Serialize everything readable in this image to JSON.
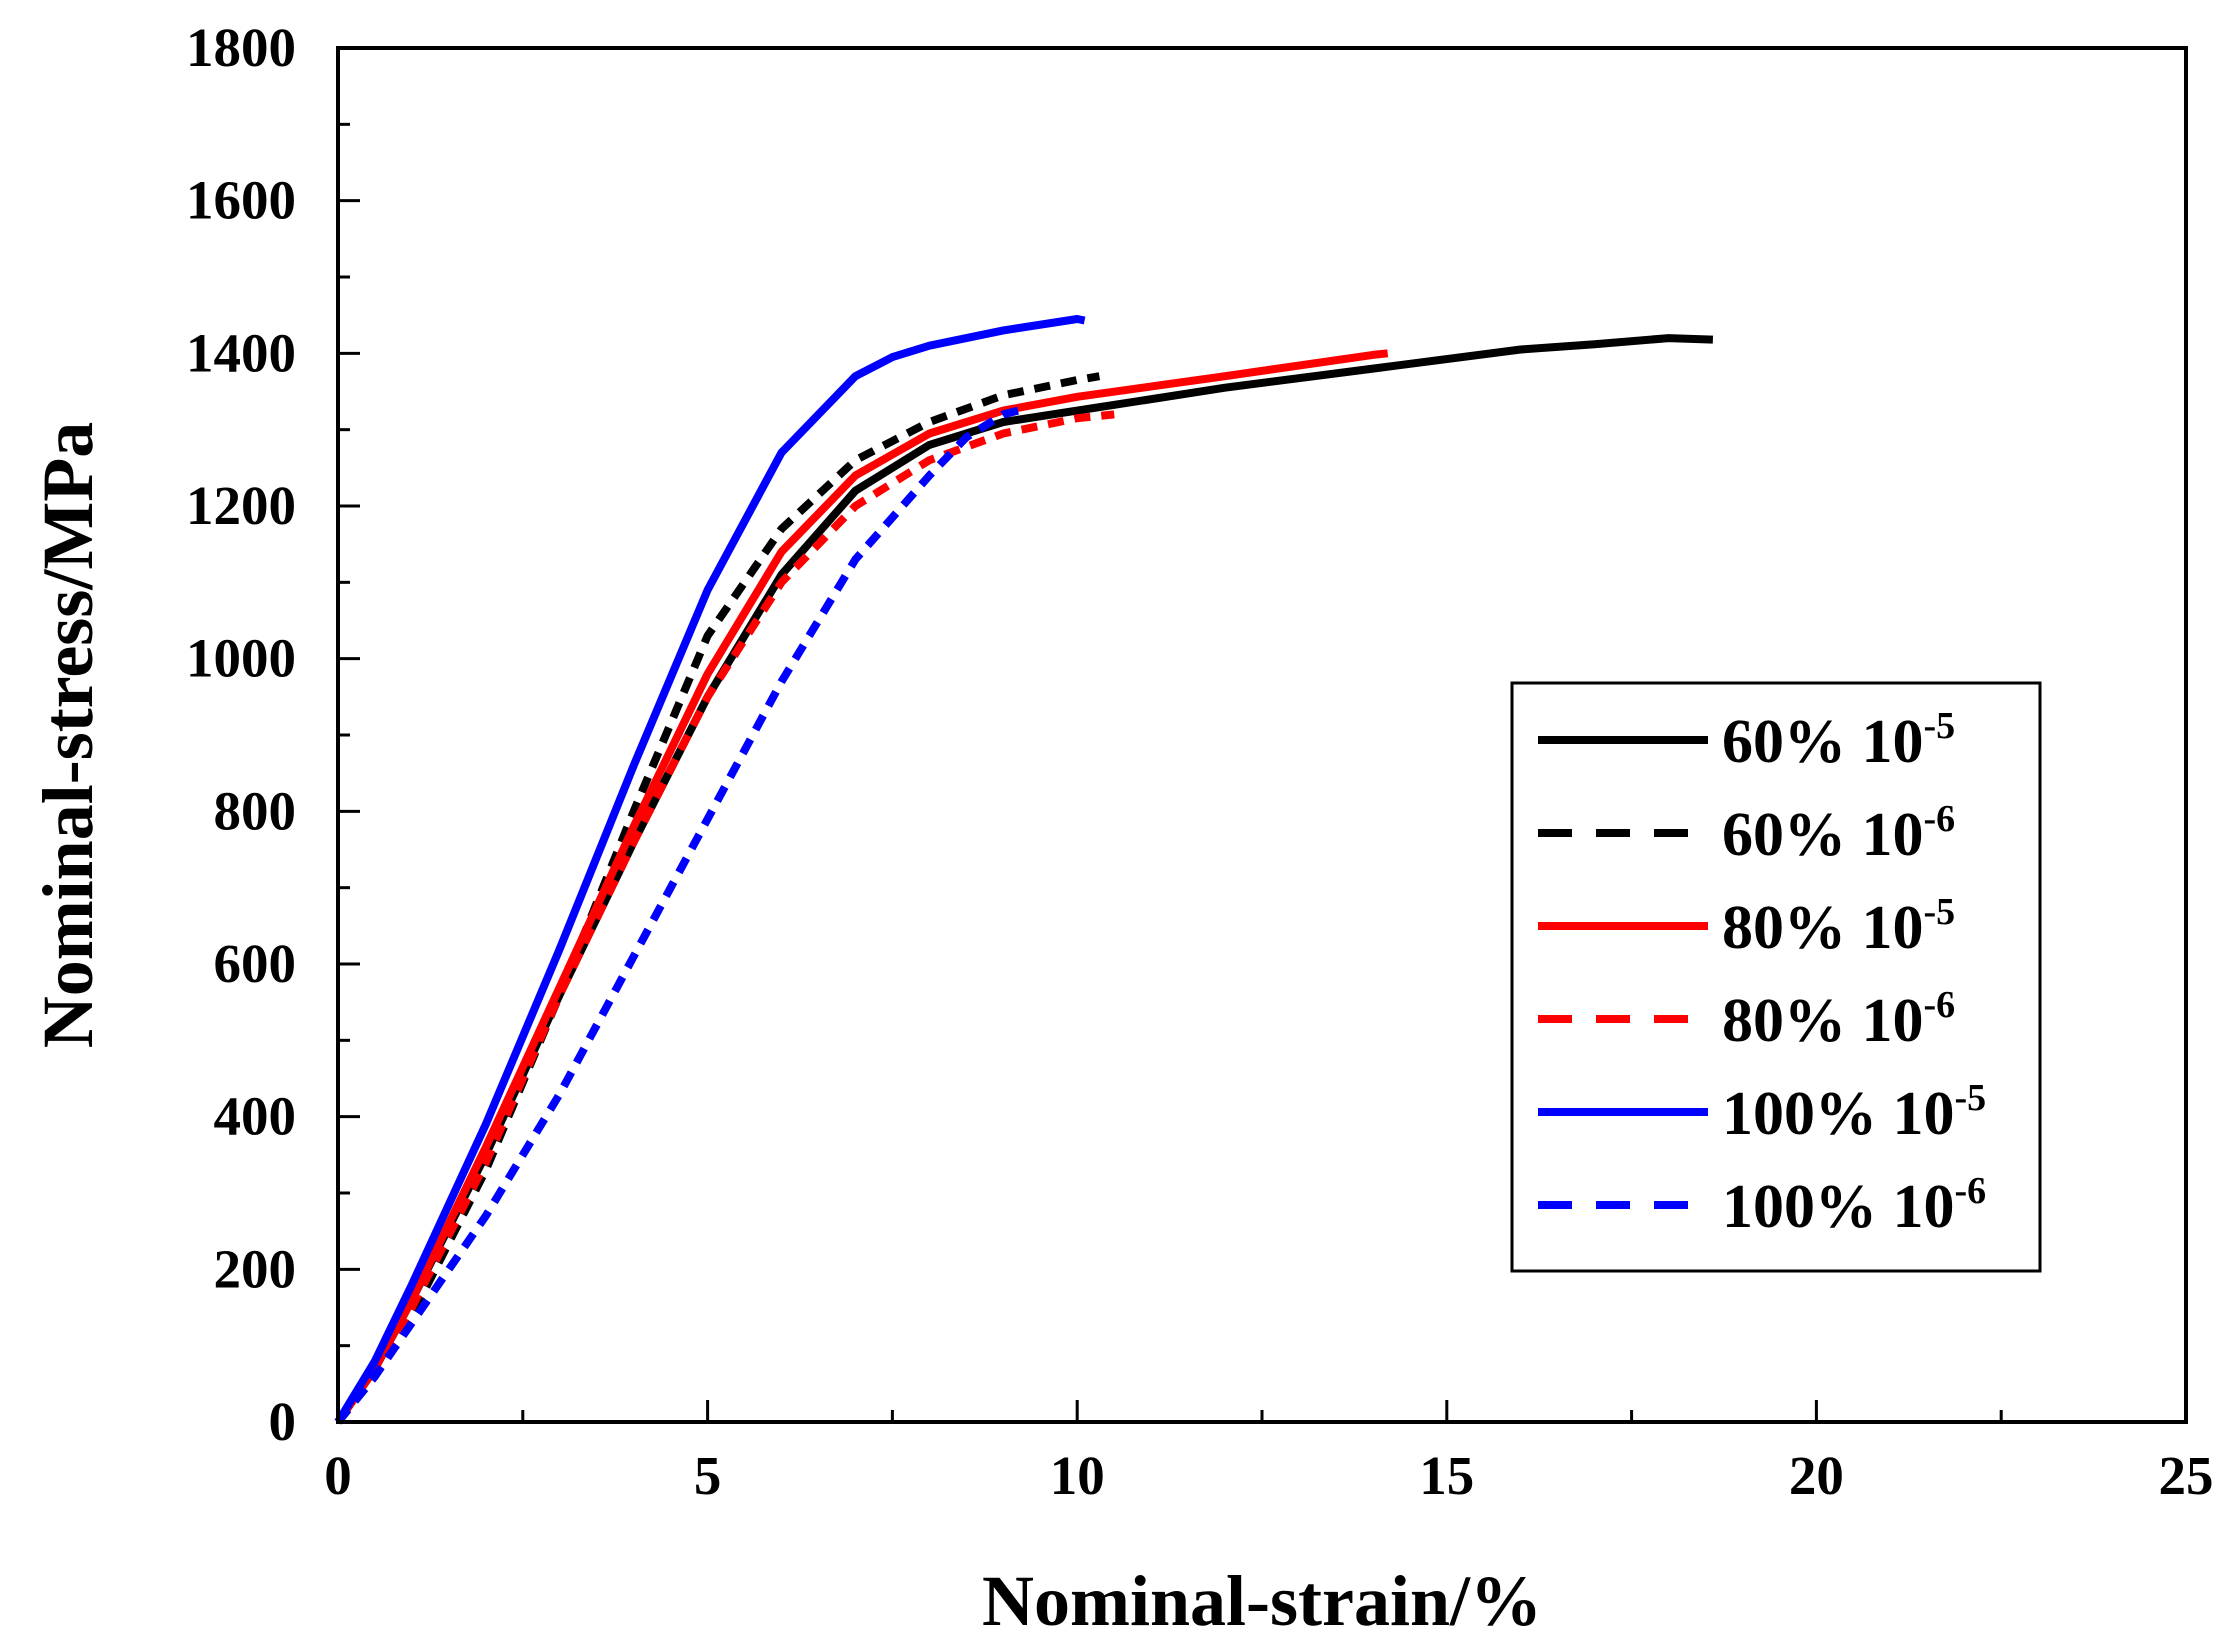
{
  "chart_data": {
    "type": "line",
    "title": "",
    "xlabel": "Nominal-strain/%",
    "ylabel": "Nominal-stress/MPa",
    "xlim": [
      0,
      25
    ],
    "ylim": [
      0,
      1800
    ],
    "xticks": [
      0,
      5,
      10,
      15,
      20,
      25
    ],
    "yticks": [
      0,
      200,
      400,
      600,
      800,
      1000,
      1200,
      1400,
      1600,
      1800
    ],
    "x_tick_labels": [
      "0",
      "5",
      "10",
      "15",
      "20",
      "25"
    ],
    "y_tick_labels": [
      "0",
      "200",
      "400",
      "600",
      "800",
      "1000",
      "1200",
      "1400",
      "1600",
      "1800"
    ],
    "grid": false,
    "legend_position": "center-right",
    "series": [
      {
        "name": "60% 10-5",
        "label_main": "60% 10",
        "label_exp": "-5",
        "color": "#000000",
        "style": "solid",
        "points": [
          [
            0,
            0
          ],
          [
            0.5,
            70
          ],
          [
            1,
            160
          ],
          [
            2,
            350
          ],
          [
            3,
            560
          ],
          [
            4,
            760
          ],
          [
            5,
            950
          ],
          [
            6,
            1110
          ],
          [
            7,
            1220
          ],
          [
            8,
            1280
          ],
          [
            9,
            1310
          ],
          [
            10,
            1325
          ],
          [
            12,
            1355
          ],
          [
            14,
            1380
          ],
          [
            16,
            1405
          ],
          [
            17,
            1412
          ],
          [
            18,
            1420
          ],
          [
            18.6,
            1418
          ]
        ]
      },
      {
        "name": "60% 10-6",
        "label_main": "60% 10",
        "label_exp": "-6",
        "color": "#000000",
        "style": "dash",
        "points": [
          [
            0,
            0
          ],
          [
            0.5,
            60
          ],
          [
            1,
            140
          ],
          [
            2,
            330
          ],
          [
            3,
            560
          ],
          [
            4,
            800
          ],
          [
            5,
            1030
          ],
          [
            6,
            1170
          ],
          [
            7,
            1260
          ],
          [
            8,
            1310
          ],
          [
            9,
            1345
          ],
          [
            10,
            1365
          ],
          [
            10.3,
            1370
          ]
        ]
      },
      {
        "name": "80% 10-5",
        "label_main": "80% 10",
        "label_exp": "-5",
        "color": "#ff0000",
        "style": "solid",
        "points": [
          [
            0,
            0
          ],
          [
            0.5,
            70
          ],
          [
            1,
            160
          ],
          [
            2,
            360
          ],
          [
            3,
            570
          ],
          [
            4,
            780
          ],
          [
            5,
            980
          ],
          [
            6,
            1140
          ],
          [
            7,
            1240
          ],
          [
            8,
            1295
          ],
          [
            9,
            1325
          ],
          [
            10,
            1343
          ],
          [
            12,
            1370
          ],
          [
            14,
            1398
          ],
          [
            14.2,
            1400
          ]
        ]
      },
      {
        "name": "80% 10-6",
        "label_main": "80% 10",
        "label_exp": "-6",
        "color": "#ff0000",
        "style": "dash",
        "points": [
          [
            0,
            0
          ],
          [
            0.5,
            65
          ],
          [
            1,
            150
          ],
          [
            2,
            340
          ],
          [
            3,
            560
          ],
          [
            4,
            760
          ],
          [
            5,
            950
          ],
          [
            6,
            1100
          ],
          [
            7,
            1200
          ],
          [
            8,
            1260
          ],
          [
            9,
            1295
          ],
          [
            10,
            1315
          ],
          [
            10.5,
            1320
          ]
        ]
      },
      {
        "name": "100% 10-5",
        "label_main": "100% 10",
        "label_exp": "-5",
        "color": "#0000ff",
        "style": "solid",
        "points": [
          [
            0,
            0
          ],
          [
            0.5,
            80
          ],
          [
            1,
            180
          ],
          [
            2,
            390
          ],
          [
            3,
            620
          ],
          [
            4,
            860
          ],
          [
            5,
            1090
          ],
          [
            6,
            1270
          ],
          [
            7,
            1370
          ],
          [
            7.5,
            1395
          ],
          [
            8,
            1410
          ],
          [
            9,
            1430
          ],
          [
            10,
            1445
          ],
          [
            10.1,
            1443
          ]
        ]
      },
      {
        "name": "100% 10-6",
        "label_main": "100% 10",
        "label_exp": "-6",
        "color": "#0000ff",
        "style": "dash",
        "points": [
          [
            0,
            0
          ],
          [
            0.5,
            60
          ],
          [
            1,
            130
          ],
          [
            2,
            270
          ],
          [
            3,
            430
          ],
          [
            4,
            610
          ],
          [
            5,
            790
          ],
          [
            6,
            970
          ],
          [
            7,
            1130
          ],
          [
            8,
            1240
          ],
          [
            8.5,
            1290
          ],
          [
            9,
            1320
          ],
          [
            9.2,
            1325
          ]
        ]
      }
    ]
  }
}
